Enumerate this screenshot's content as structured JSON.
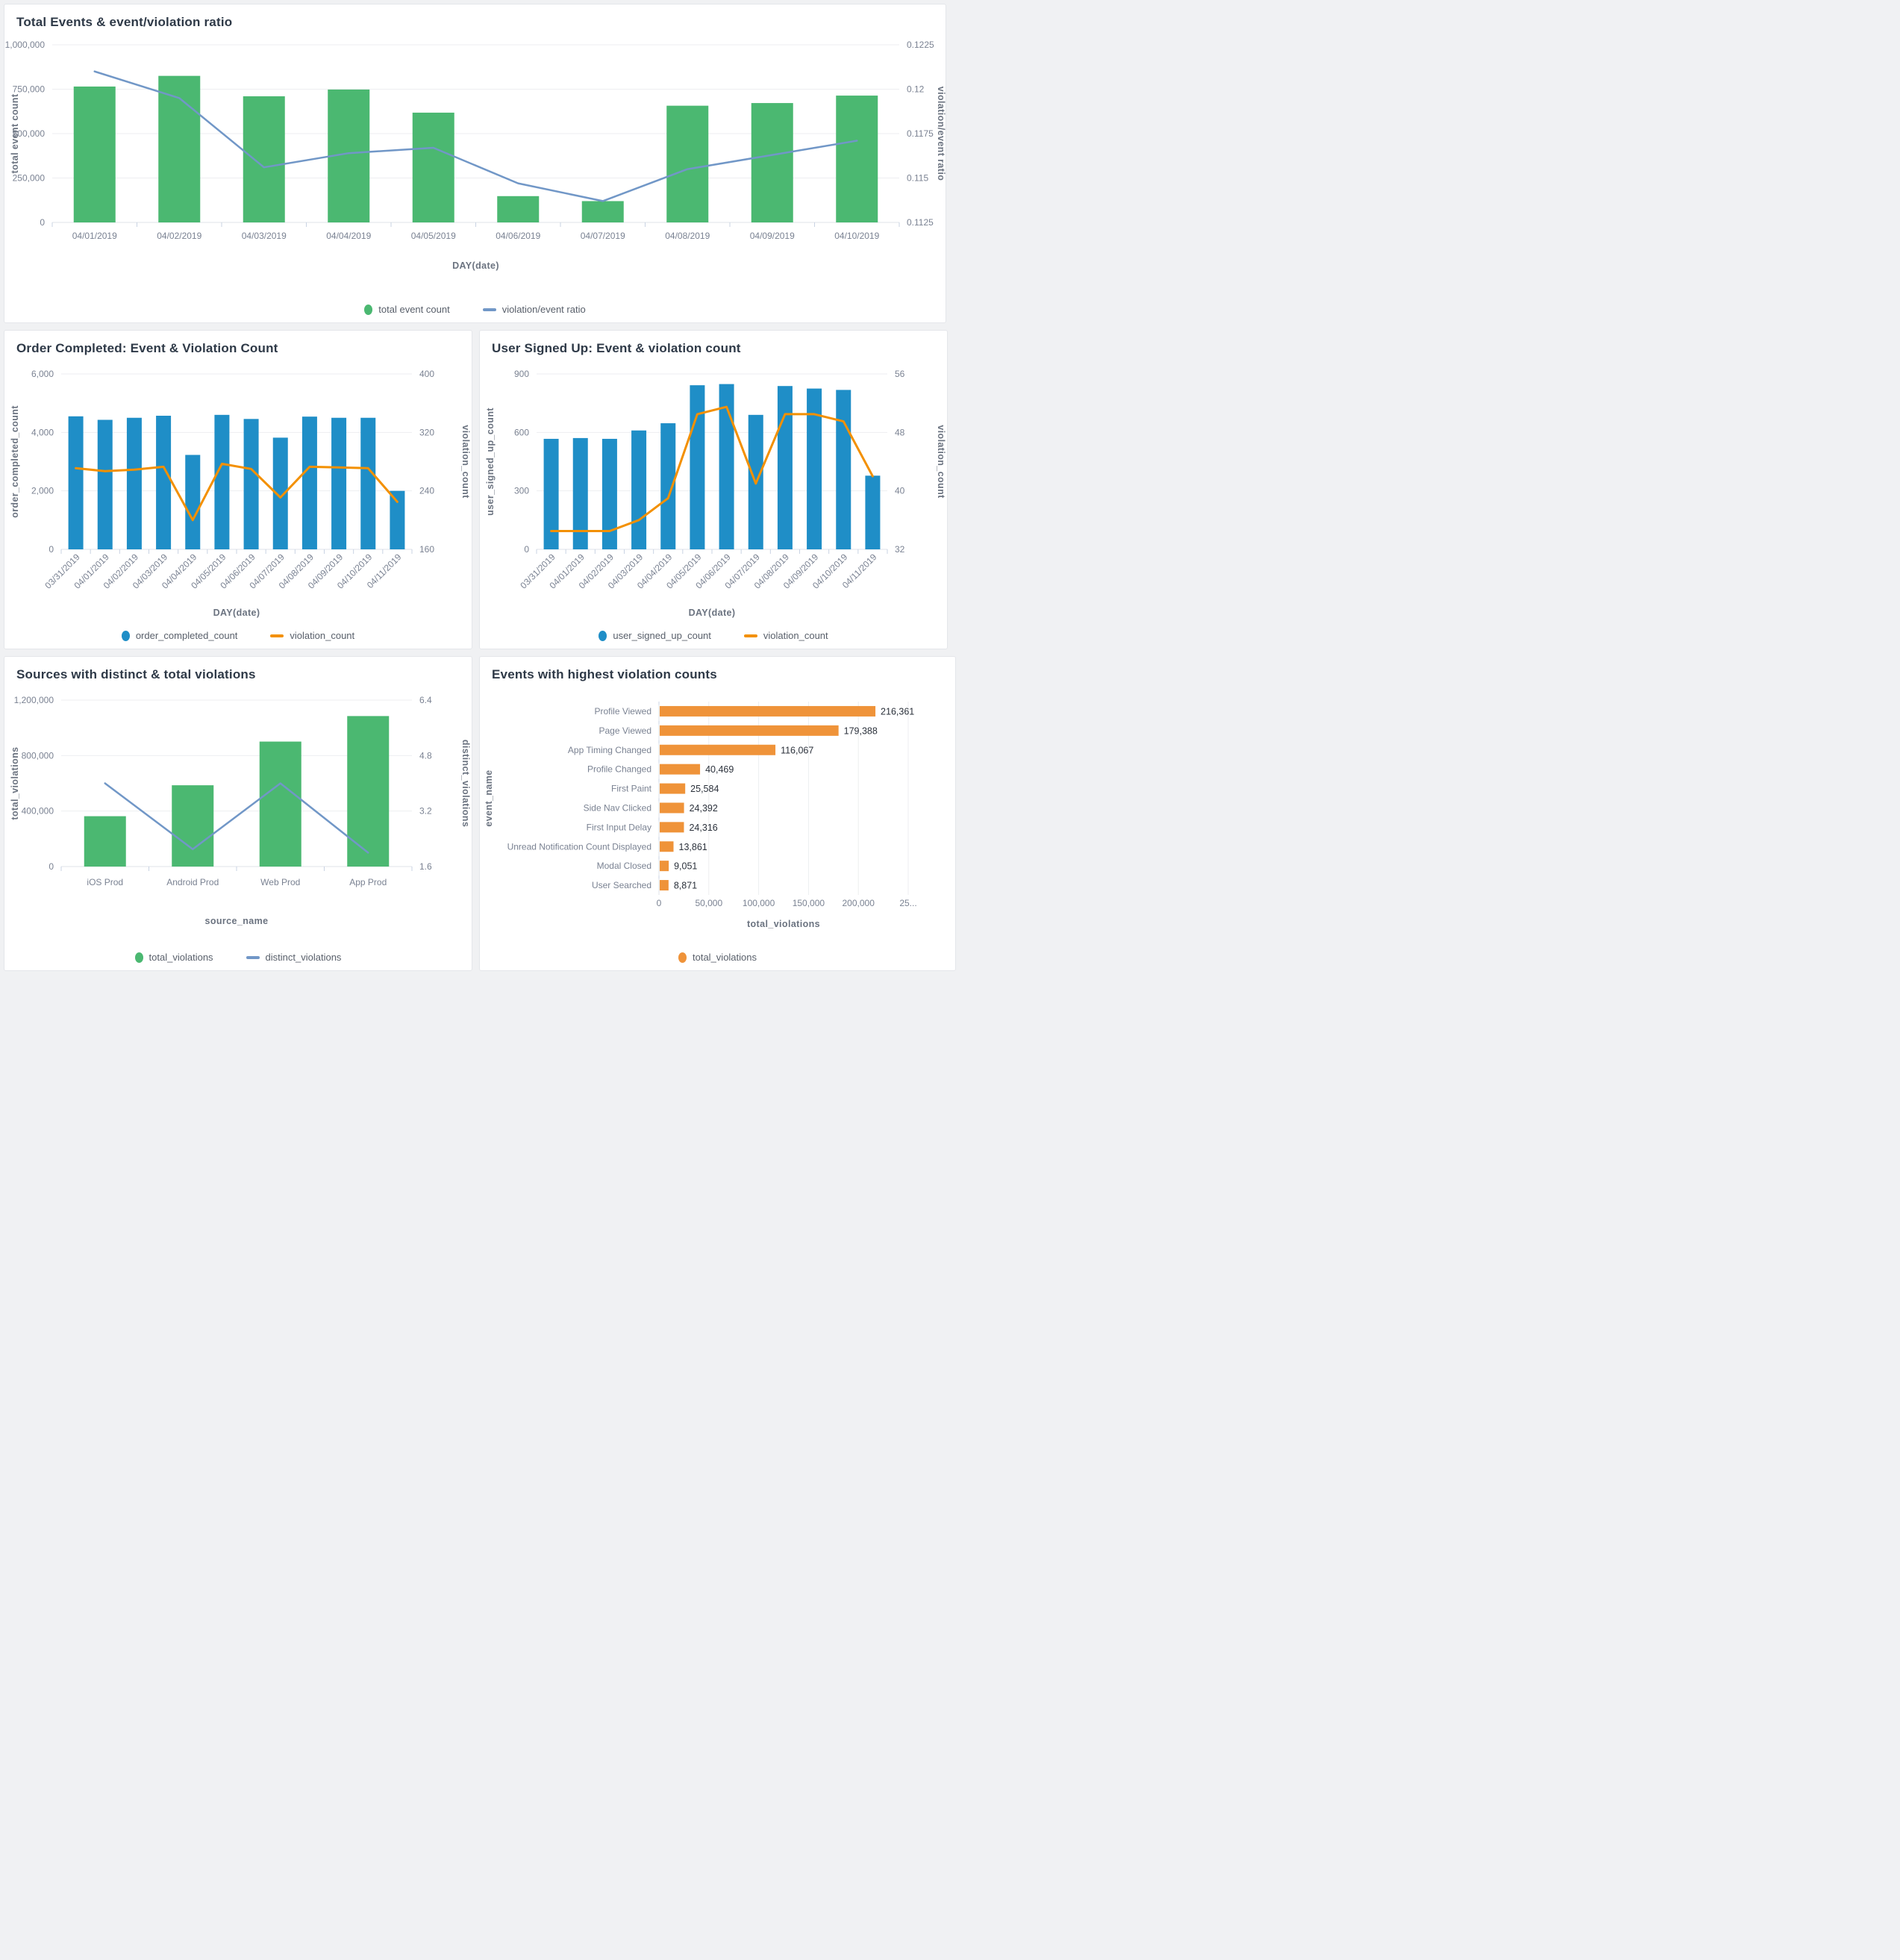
{
  "colors": {
    "green_bar": "#4bb871",
    "steel_line": "#7197c7",
    "blue_bar": "#1f8ec7",
    "orange_line": "#f39000",
    "orange_bar": "#ef9339",
    "title_text": "#2e3947",
    "axis_text": "#7a8292"
  },
  "charts": [
    {
      "id": "total-events",
      "type": "dual",
      "title": "Total Events & event/violation ratio",
      "x_label": "DAY(date)",
      "categories": [
        "04/01/2019",
        "04/02/2019",
        "04/03/2019",
        "04/04/2019",
        "04/05/2019",
        "04/06/2019",
        "04/07/2019",
        "04/08/2019",
        "04/09/2019",
        "04/10/2019"
      ],
      "bar_series": {
        "name": "total event count",
        "color": "#4bb871",
        "values": [
          765000,
          825000,
          710000,
          748000,
          618000,
          148000,
          120000,
          657000,
          672000,
          714000
        ]
      },
      "line_series": {
        "name": "violation/event ratio",
        "color": "#7197c7",
        "values": [
          0.121,
          0.1195,
          0.1156,
          0.1164,
          0.1167,
          0.1147,
          0.1137,
          0.1155,
          0.1163,
          0.1171
        ]
      },
      "left_axis": {
        "label": "total event count",
        "ticks": [
          "0",
          "250,000",
          "500,000",
          "750,000",
          "1,000,000"
        ],
        "min": 0,
        "max": 1000000
      },
      "right_axis": {
        "label": "violation/event ratio",
        "ticks": [
          "0.1125",
          "0.115",
          "0.1175",
          "0.12",
          "0.1225"
        ],
        "min": 0.1125,
        "max": 0.1225
      }
    },
    {
      "id": "order-completed",
      "type": "dual",
      "title": "Order Completed: Event & Violation Count",
      "x_label": "DAY(date)",
      "categories": [
        "03/31/2019",
        "04/01/2019",
        "04/02/2019",
        "04/03/2019",
        "04/04/2019",
        "04/05/2019",
        "04/06/2019",
        "04/07/2019",
        "04/08/2019",
        "04/09/2019",
        "04/10/2019",
        "04/11/2019"
      ],
      "bar_series": {
        "name": "order_completed_count",
        "color": "#1f8ec7",
        "values": [
          4550,
          4430,
          4500,
          4570,
          3230,
          4600,
          4460,
          3820,
          4540,
          4500,
          4500,
          2000
        ]
      },
      "line_series": {
        "name": "violation_count",
        "color": "#f39000",
        "values": [
          271,
          267,
          269,
          273,
          200,
          277,
          270,
          231,
          273,
          272,
          271,
          225
        ]
      },
      "left_axis": {
        "label": "order_completed_count",
        "ticks": [
          "0",
          "2,000",
          "4,000",
          "6,000"
        ],
        "min": 0,
        "max": 6000
      },
      "right_axis": {
        "label": "violation_count",
        "ticks": [
          "160",
          "240",
          "320",
          "400"
        ],
        "min": 160,
        "max": 400
      }
    },
    {
      "id": "user-signed-up",
      "type": "dual",
      "title": "User Signed Up: Event & violation count",
      "x_label": "DAY(date)",
      "categories": [
        "03/31/2019",
        "04/01/2019",
        "04/02/2019",
        "04/03/2019",
        "04/04/2019",
        "04/05/2019",
        "04/06/2019",
        "04/07/2019",
        "04/08/2019",
        "04/09/2019",
        "04/10/2019",
        "04/11/2019"
      ],
      "bar_series": {
        "name": "user_signed_up_count",
        "color": "#1f8ec7",
        "values": [
          567,
          571,
          567,
          610,
          647,
          842,
          848,
          690,
          838,
          825,
          818,
          378
        ]
      },
      "line_series": {
        "name": "violation_count",
        "color": "#f39000",
        "values": [
          34.5,
          34.5,
          34.5,
          36,
          39,
          50.5,
          51.5,
          41,
          50.5,
          50.5,
          49.5,
          42
        ]
      },
      "left_axis": {
        "label": "user_signed_up_count",
        "ticks": [
          "0",
          "300",
          "600",
          "900"
        ],
        "min": 0,
        "max": 900
      },
      "right_axis": {
        "label": "violation_count",
        "ticks": [
          "32",
          "40",
          "48",
          "56"
        ],
        "min": 32,
        "max": 56
      }
    },
    {
      "id": "sources-violations",
      "type": "dual",
      "title": "Sources with distinct & total violations",
      "x_label": "source_name",
      "categories": [
        "iOS Prod",
        "Android Prod",
        "Web Prod",
        "App Prod"
      ],
      "bar_series": {
        "name": "total_violations",
        "color": "#4bb871",
        "values": [
          363000,
          586000,
          901000,
          1085000
        ]
      },
      "line_series": {
        "name": "distinct_violations",
        "color": "#7197c7",
        "values": [
          4.0,
          2.1,
          4.0,
          2.0
        ]
      },
      "left_axis": {
        "label": "total_violations",
        "ticks": [
          "0",
          "400,000",
          "800,000",
          "1,200,000"
        ],
        "min": 0,
        "max": 1200000
      },
      "right_axis": {
        "label": "distinct_violations",
        "ticks": [
          "1.6",
          "3.2",
          "4.8",
          "6.4"
        ],
        "min": 1.6,
        "max": 6.4
      }
    },
    {
      "id": "top-violation-events",
      "type": "hbar",
      "title": "Events with highest violation counts",
      "x_label": "total_violations",
      "y_label": "event_name",
      "legend_label": "total_violations",
      "bar_color": "#ef9339",
      "categories": [
        "Profile Viewed",
        "Page Viewed",
        "App Timing Changed",
        "Profile Changed",
        "First Paint",
        "Side Nav Clicked",
        "First Input Delay",
        "Unread Notification Count Displayed",
        "Modal Closed",
        "User Searched"
      ],
      "values": [
        216361,
        179388,
        116067,
        40469,
        25584,
        24392,
        24316,
        13861,
        9051,
        8871
      ],
      "value_labels": [
        "216,361",
        "179,388",
        "116,067",
        "40,469",
        "25,584",
        "24,392",
        "24,316",
        "13,861",
        "9,051",
        "8,871"
      ],
      "x_axis": {
        "ticks": [
          "0",
          "50,000",
          "100,000",
          "150,000",
          "200,000",
          "25..."
        ],
        "min": 0,
        "max": 250000
      }
    }
  ],
  "chart_data": [
    {
      "type": "bar+line",
      "title": "Total Events & event/violation ratio",
      "categories": [
        "04/01/2019",
        "04/02/2019",
        "04/03/2019",
        "04/04/2019",
        "04/05/2019",
        "04/06/2019",
        "04/07/2019",
        "04/08/2019",
        "04/09/2019",
        "04/10/2019"
      ],
      "series": [
        {
          "name": "total event count",
          "type": "bar",
          "values": [
            765000,
            825000,
            710000,
            748000,
            618000,
            148000,
            120000,
            657000,
            672000,
            714000
          ]
        },
        {
          "name": "violation/event ratio",
          "type": "line",
          "values": [
            0.121,
            0.1195,
            0.1156,
            0.1164,
            0.1167,
            0.1147,
            0.1137,
            0.1155,
            0.1163,
            0.1171
          ]
        }
      ],
      "xlabel": "DAY(date)",
      "ylabel": "total event count",
      "y2label": "violation/event ratio",
      "ylim": [
        0,
        1000000
      ],
      "y2lim": [
        0.1125,
        0.1225
      ],
      "grid": true,
      "legend_position": "bottom"
    },
    {
      "type": "bar+line",
      "title": "Order Completed: Event & Violation Count",
      "categories": [
        "03/31/2019",
        "04/01/2019",
        "04/02/2019",
        "04/03/2019",
        "04/04/2019",
        "04/05/2019",
        "04/06/2019",
        "04/07/2019",
        "04/08/2019",
        "04/09/2019",
        "04/10/2019",
        "04/11/2019"
      ],
      "series": [
        {
          "name": "order_completed_count",
          "type": "bar",
          "values": [
            4550,
            4430,
            4500,
            4570,
            3230,
            4600,
            4460,
            3820,
            4540,
            4500,
            4500,
            2000
          ]
        },
        {
          "name": "violation_count",
          "type": "line",
          "values": [
            271,
            267,
            269,
            273,
            200,
            277,
            270,
            231,
            273,
            272,
            271,
            225
          ]
        }
      ],
      "xlabel": "DAY(date)",
      "ylabel": "order_completed_count",
      "y2label": "violation_count",
      "ylim": [
        0,
        6000
      ],
      "y2lim": [
        160,
        400
      ],
      "grid": true,
      "legend_position": "bottom"
    },
    {
      "type": "bar+line",
      "title": "User Signed Up: Event & violation count",
      "categories": [
        "03/31/2019",
        "04/01/2019",
        "04/02/2019",
        "04/03/2019",
        "04/04/2019",
        "04/05/2019",
        "04/06/2019",
        "04/07/2019",
        "04/08/2019",
        "04/09/2019",
        "04/10/2019",
        "04/11/2019"
      ],
      "series": [
        {
          "name": "user_signed_up_count",
          "type": "bar",
          "values": [
            567,
            571,
            567,
            610,
            647,
            842,
            848,
            690,
            838,
            825,
            818,
            378
          ]
        },
        {
          "name": "violation_count",
          "type": "line",
          "values": [
            34.5,
            34.5,
            34.5,
            36,
            39,
            50.5,
            51.5,
            41,
            50.5,
            50.5,
            49.5,
            42
          ]
        }
      ],
      "xlabel": "DAY(date)",
      "ylabel": "user_signed_up_count",
      "y2label": "violation_count",
      "ylim": [
        0,
        900
      ],
      "y2lim": [
        32,
        56
      ],
      "grid": true,
      "legend_position": "bottom"
    },
    {
      "type": "bar+line",
      "title": "Sources with distinct & total violations",
      "categories": [
        "iOS Prod",
        "Android Prod",
        "Web Prod",
        "App Prod"
      ],
      "series": [
        {
          "name": "total_violations",
          "type": "bar",
          "values": [
            363000,
            586000,
            901000,
            1085000
          ]
        },
        {
          "name": "distinct_violations",
          "type": "line",
          "values": [
            4.0,
            2.1,
            4.0,
            2.0
          ]
        }
      ],
      "xlabel": "source_name",
      "ylabel": "total_violations",
      "y2label": "distinct_violations",
      "ylim": [
        0,
        1200000
      ],
      "y2lim": [
        1.6,
        6.4
      ],
      "grid": true,
      "legend_position": "bottom"
    },
    {
      "type": "bar",
      "title": "Events with highest violation counts",
      "orientation": "horizontal",
      "categories": [
        "Profile Viewed",
        "Page Viewed",
        "App Timing Changed",
        "Profile Changed",
        "First Paint",
        "Side Nav Clicked",
        "First Input Delay",
        "Unread Notification Count Displayed",
        "Modal Closed",
        "User Searched"
      ],
      "values": [
        216361,
        179388,
        116067,
        40469,
        25584,
        24392,
        24316,
        13861,
        9051,
        8871
      ],
      "xlabel": "total_violations",
      "ylabel": "event_name",
      "xlim": [
        0,
        250000
      ],
      "grid": true,
      "legend_position": "bottom"
    }
  ]
}
